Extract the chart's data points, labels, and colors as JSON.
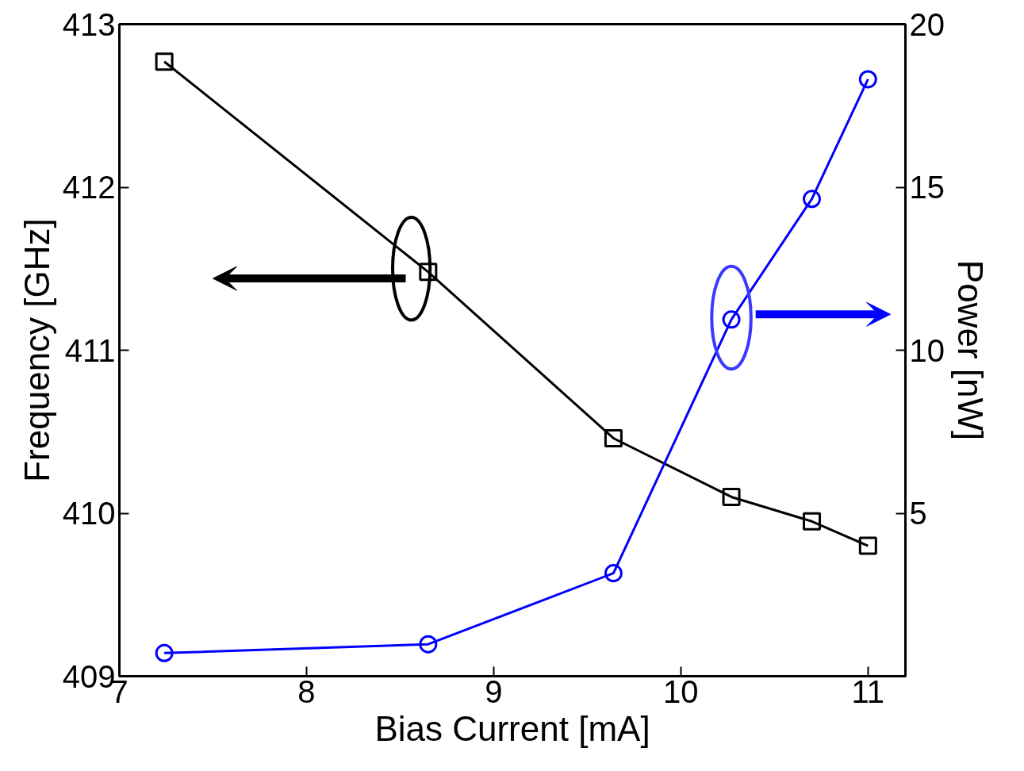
{
  "chart_data": {
    "type": "line",
    "xlabel": "Bias Current [mA]",
    "ylabel": "Frequency [GHz]",
    "y2label": "Power [nW]",
    "x": [
      7.24,
      8.65,
      9.64,
      10.27,
      10.7,
      11.0
    ],
    "series": [
      {
        "color": "#000000",
        "marker": "square",
        "values": [
          412.77,
          411.48,
          410.46,
          410.1,
          409.95,
          409.8
        ]
      },
      {
        "color": "#0000ff",
        "marker": "circle",
        "axis": "y2",
        "values": [
          0.71,
          0.98,
          3.16,
          10.94,
          14.64,
          18.31
        ]
      }
    ],
    "xlim": [
      7,
      11.2
    ],
    "xticks": [
      7,
      8,
      9,
      10,
      11
    ],
    "ylim": [
      409,
      413
    ],
    "yticks": [
      409,
      410,
      411,
      412,
      413
    ],
    "y2lim": [
      0,
      20
    ],
    "y2ticks": [
      5,
      10,
      15,
      20
    ],
    "grid": false,
    "line_style": "solid"
  }
}
